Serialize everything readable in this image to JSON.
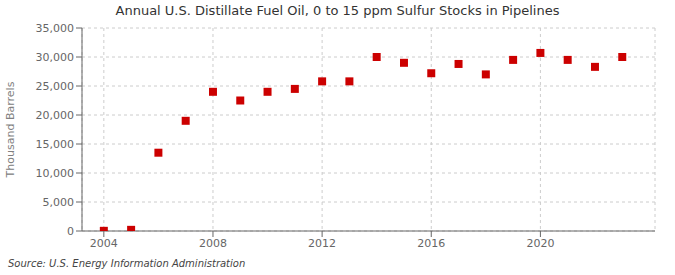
{
  "chart_data": {
    "type": "scatter",
    "title": "Annual U.S. Distillate Fuel Oil, 0 to 15 ppm Sulfur Stocks in Pipelines",
    "ylabel": "Thousand Barrels",
    "annotations": [
      "Source: U.S. Energy Information Administration"
    ],
    "x": [
      2004,
      2005,
      2006,
      2007,
      2008,
      2009,
      2010,
      2011,
      2012,
      2013,
      2014,
      2015,
      2016,
      2017,
      2018,
      2019,
      2020,
      2021,
      2022,
      2023
    ],
    "values": [
      30,
      200,
      13500,
      19000,
      24000,
      22500,
      24000,
      24500,
      25800,
      25800,
      30000,
      29000,
      27200,
      28800,
      27000,
      29500,
      30700,
      29500,
      28300,
      30000
    ],
    "color": "#cc0000",
    "marker": "square",
    "grid": true,
    "xlim": [
      2003.2,
      2024.2
    ],
    "xticks": [
      2004,
      2008,
      2012,
      2016,
      2020
    ],
    "ylim": [
      0,
      35000
    ],
    "yticks": [
      0,
      {
        "value": 5000,
        "label": "5,000"
      },
      {
        "value": 10000,
        "label": "10,000"
      },
      {
        "value": 15000,
        "label": "15,000"
      },
      {
        "value": 20000,
        "label": "20,000"
      },
      {
        "value": 25000,
        "label": "25,000"
      },
      {
        "value": 30000,
        "label": "30,000"
      },
      {
        "value": 35000,
        "label": "35,000"
      }
    ]
  }
}
